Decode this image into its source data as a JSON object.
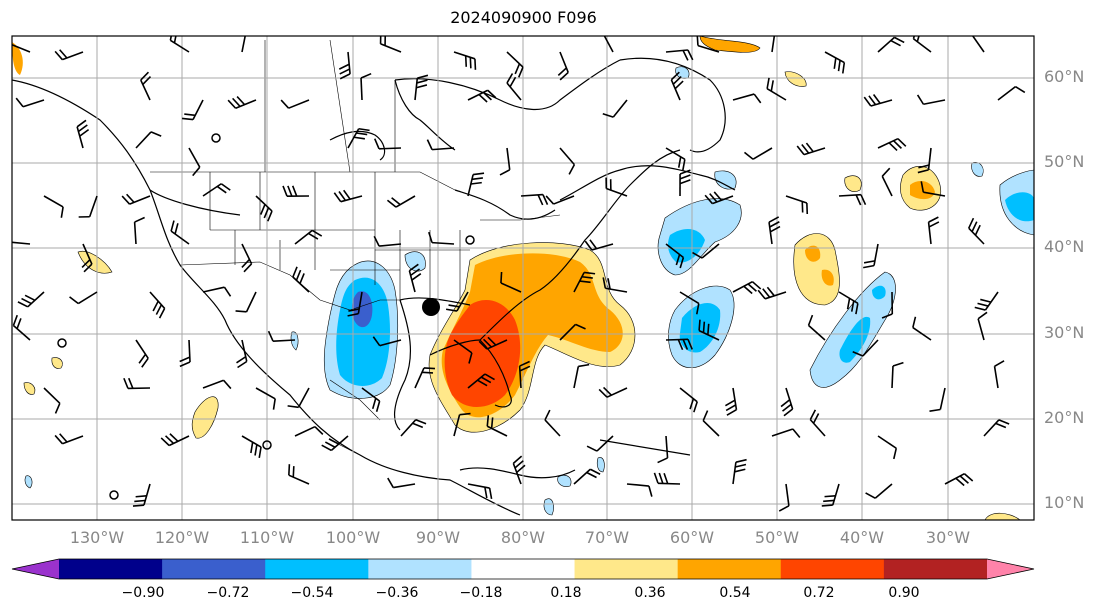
{
  "title": "2024090900 F096",
  "lat_labels": [
    "60°N",
    "50°N",
    "40°N",
    "30°N",
    "20°N",
    "10°N"
  ],
  "lon_labels": [
    "130°W",
    "120°W",
    "110°W",
    "100°W",
    "90°W",
    "80°W",
    "70°W",
    "60°W",
    "50°W",
    "40°W",
    "30°W"
  ],
  "colorbar": {
    "ticks": [
      "−0.90",
      "−0.72",
      "−0.54",
      "−0.36",
      "−0.18",
      "0.18",
      "0.36",
      "0.54",
      "0.72",
      "0.90"
    ],
    "colors": [
      "#9a32cd",
      "#00008b",
      "#3a5fcd",
      "#00bfff",
      "#b0e2ff",
      "#ffffff",
      "#ffe88a",
      "#ffa500",
      "#ff4500",
      "#b22222",
      "#ff83aa"
    ]
  },
  "map": {
    "lon_range": [
      -138,
      -16
    ],
    "lat_range": [
      7,
      65
    ],
    "grid": true,
    "marker": {
      "lon": -90,
      "lat": 33
    }
  }
}
